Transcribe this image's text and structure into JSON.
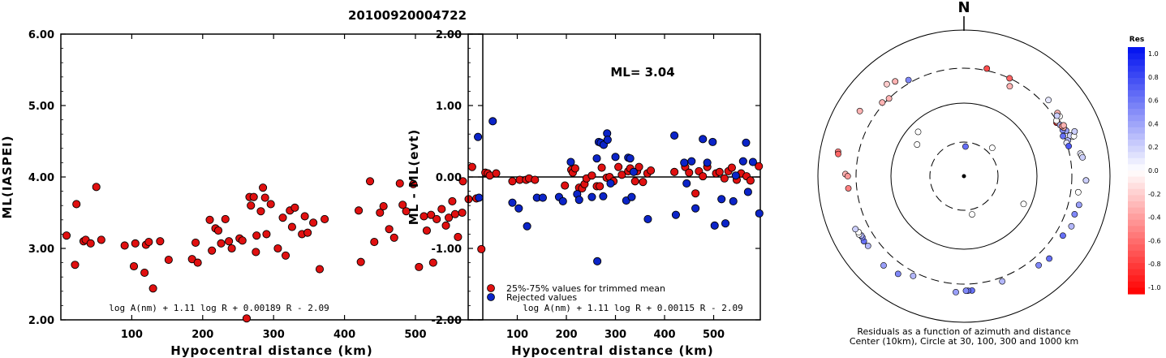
{
  "event_id": "20100920004722",
  "chart_data": [
    {
      "type": "scatter",
      "title": "",
      "xlabel": "Hypocentral distance (km)",
      "ylabel": "ML(IASPEI)",
      "xlim": [
        0,
        595
      ],
      "ylim": [
        2.0,
        6.0
      ],
      "xticks": [
        "100",
        "200",
        "300",
        "400",
        "500"
      ],
      "yticks": [
        "2.00",
        "3.00",
        "4.00",
        "5.00",
        "6.00"
      ],
      "formula": "log A(nm) + 1.11 log R + 0.00189 R - 2.09",
      "point_color": "#e01010",
      "series": [
        {
          "x": [
            8,
            20,
            22,
            32,
            35,
            42,
            50,
            57,
            90,
            103,
            105,
            118,
            120,
            124,
            130,
            140,
            152,
            185,
            190,
            193,
            210,
            213,
            218,
            222,
            226,
            232,
            237,
            241,
            252,
            256,
            262,
            266,
            268,
            272,
            275,
            276,
            282,
            285,
            288,
            290,
            296,
            306,
            313,
            317,
            323,
            326,
            330,
            340,
            344,
            348,
            356,
            365,
            372,
            420,
            423,
            436,
            442,
            450,
            455,
            463,
            470,
            478,
            482,
            487,
            497,
            505,
            512,
            516,
            522,
            525,
            530,
            537,
            543,
            547,
            552,
            556,
            560,
            566,
            567,
            575,
            586,
            593
          ],
          "y": [
            3.18,
            2.77,
            3.62,
            3.1,
            3.12,
            3.07,
            3.86,
            3.12,
            3.04,
            2.75,
            3.07,
            2.66,
            3.05,
            3.09,
            2.44,
            3.1,
            2.84,
            2.85,
            3.08,
            2.8,
            3.4,
            2.97,
            3.28,
            3.25,
            3.07,
            3.41,
            3.1,
            3.0,
            3.14,
            3.11,
            2.02,
            3.72,
            3.6,
            3.72,
            2.95,
            3.18,
            3.52,
            3.85,
            3.71,
            3.2,
            3.62,
            3.0,
            3.43,
            2.9,
            3.53,
            3.3,
            3.57,
            3.2,
            3.45,
            3.22,
            3.36,
            2.71,
            3.41,
            3.53,
            2.81,
            3.94,
            3.09,
            3.5,
            3.59,
            3.27,
            3.15,
            3.91,
            3.61,
            3.52,
            3.9,
            2.74,
            3.45,
            3.25,
            3.47,
            2.8,
            3.41,
            3.55,
            3.32,
            3.43,
            3.66,
            3.48,
            3.16,
            3.5,
            3.94,
            3.69,
            3.7,
            2.99
          ]
        }
      ]
    },
    {
      "type": "scatter",
      "title": "",
      "xlabel": "Hypocentral distance (km)",
      "ylabel": "ML - ML(evt)",
      "xlim": [
        0,
        595
      ],
      "ylim": [
        -2.0,
        2.0
      ],
      "xticks": [
        "100",
        "200",
        "300",
        "400",
        "500"
      ],
      "yticks": [
        "-2.00",
        "-1.00",
        "0.00",
        "1.00",
        "2.00"
      ],
      "ml_label": "ML=  3.04",
      "formula": "log A(nm) + 1.11 log R + 0.00115 R - 2.09",
      "legend_position": "bottom-left",
      "series": [
        {
          "name": "25%-75% values for trimmed mean",
          "color": "#e01010",
          "x": [
            8,
            35,
            40,
            44,
            57,
            90,
            105,
            118,
            124,
            136,
            197,
            210,
            213,
            218,
            226,
            232,
            237,
            241,
            252,
            262,
            268,
            272,
            282,
            288,
            296,
            306,
            313,
            326,
            330,
            340,
            344,
            348,
            356,
            365,
            372,
            420,
            442,
            450,
            463,
            470,
            478,
            487,
            505,
            512,
            522,
            530,
            537,
            547,
            556,
            567,
            575,
            592
          ],
          "y": [
            0.14,
            0.06,
            0.05,
            0.02,
            0.05,
            -0.06,
            -0.04,
            -0.04,
            -0.02,
            -0.04,
            -0.12,
            0.1,
            0.06,
            0.12,
            -0.15,
            -0.16,
            -0.1,
            -0.02,
            0.02,
            -0.13,
            -0.13,
            0.13,
            -0.01,
            0.0,
            -0.06,
            0.14,
            0.03,
            0.08,
            0.12,
            -0.06,
            0.08,
            0.14,
            -0.07,
            0.05,
            0.09,
            0.07,
            0.14,
            0.06,
            -0.23,
            0.08,
            0.01,
            0.14,
            0.05,
            0.07,
            -0.02,
            0.08,
            0.13,
            -0.04,
            0.05,
            0.01,
            -0.05,
            0.15
          ]
        },
        {
          "name": "Rejected values",
          "color": "#0b24c8",
          "x": [
            20,
            22,
            50,
            90,
            103,
            120,
            140,
            152,
            185,
            193,
            209,
            222,
            226,
            252,
            262,
            263,
            266,
            270,
            275,
            276,
            283,
            284,
            290,
            300,
            322,
            326,
            330,
            333,
            337,
            366,
            420,
            423,
            440,
            445,
            455,
            463,
            478,
            487,
            498,
            502,
            516,
            524,
            540,
            545,
            560,
            566,
            570,
            580,
            593
          ],
          "y": [
            0.56,
            -0.29,
            0.78,
            -0.36,
            -0.44,
            -0.69,
            -0.29,
            -0.29,
            -0.28,
            -0.34,
            0.21,
            -0.24,
            -0.32,
            -0.28,
            0.26,
            -1.18,
            0.49,
            0.48,
            -0.27,
            0.45,
            0.61,
            0.52,
            -0.09,
            0.28,
            -0.33,
            0.27,
            0.26,
            -0.28,
            0.07,
            -0.59,
            0.58,
            -0.53,
            0.2,
            -0.09,
            0.22,
            -0.44,
            0.53,
            0.2,
            0.49,
            -0.68,
            -0.31,
            -0.65,
            -0.34,
            0.02,
            0.22,
            0.48,
            -0.21,
            0.21,
            -0.51
          ]
        }
      ]
    },
    {
      "type": "polar",
      "title": "Residuals as a function of azimuth and distance",
      "subtitle": "Center (10km), Circle at 30, 100, 300 and 1000 km",
      "north_label": "N",
      "circles_km": [
        30,
        100,
        300,
        1000
      ],
      "colorbar": {
        "label": "Res",
        "ticks": [
          "1.0",
          "0.8",
          "0.6",
          "0.4",
          "0.2",
          "0.0",
          "-0.2",
          "-0.4",
          "-0.6",
          "-0.8",
          "-1.0"
        ],
        "positive_color": "#0010f0",
        "negative_color": "#ff0000"
      },
      "stations": {
        "azimuth_deg": [
          330,
          324,
          316,
          312,
          25,
          12,
          27,
          48,
          60,
          60,
          62,
          66,
          71,
          65,
          68,
          64,
          72,
          58,
          63,
          59,
          56,
          57,
          70,
          69,
          63,
          74,
          70,
          68,
          79,
          80,
          81,
          92,
          92,
          98,
          104,
          109,
          115,
          121,
          134,
          140,
          160,
          176,
          178,
          179,
          184,
          207,
          214,
          222,
          234,
          237,
          239,
          240,
          241,
          242,
          244,
          271,
          270,
          264,
          302,
          281,
          280,
          320,
          45,
          115,
          304,
          314,
          168,
          3
        ],
        "distance_km": [
          330,
          400,
          300,
          320,
          300,
          320,
          240,
          360,
          290,
          300,
          310,
          340,
          320,
          310,
          290,
          330,
          300,
          350,
          320,
          300,
          350,
          330,
          380,
          360,
          340,
          310,
          400,
          430,
          420,
          430,
          440,
          470,
          470,
          380,
          420,
          400,
          420,
          380,
          420,
          390,
          340,
          370,
          370,
          370,
          390,
          340,
          410,
          440,
          420,
          430,
          420,
          420,
          440,
          430,
          450,
          420,
          390,
          390,
          480,
          570,
          560,
          440,
          36,
          80,
          60,
          75,
          35,
          26
        ],
        "residual": [
          0.5,
          -0.3,
          -0.3,
          -0.3,
          -0.6,
          -0.7,
          -0.3,
          0.1,
          -0.9,
          -0.4,
          0.3,
          0.4,
          0.3,
          0.5,
          0.6,
          -0.3,
          0.1,
          0.0,
          -0.4,
          0.0,
          -0.3,
          0.2,
          0.0,
          0.2,
          -0.3,
          0.7,
          0.0,
          0.2,
          0.1,
          0.0,
          0.2,
          0.4,
          0.2,
          0.0,
          0.4,
          0.5,
          0.3,
          0.6,
          0.6,
          0.5,
          0.3,
          0.6,
          0.6,
          0.5,
          0.4,
          0.3,
          0.5,
          0.4,
          0.3,
          0.6,
          0.5,
          0.3,
          0.0,
          0.0,
          0.2,
          -0.3,
          -0.4,
          -0.5,
          -0.3,
          -0.5,
          -0.6,
          -0.2,
          0.0,
          0.0,
          0.0,
          0.0,
          0.0,
          0.6
        ]
      }
    }
  ]
}
